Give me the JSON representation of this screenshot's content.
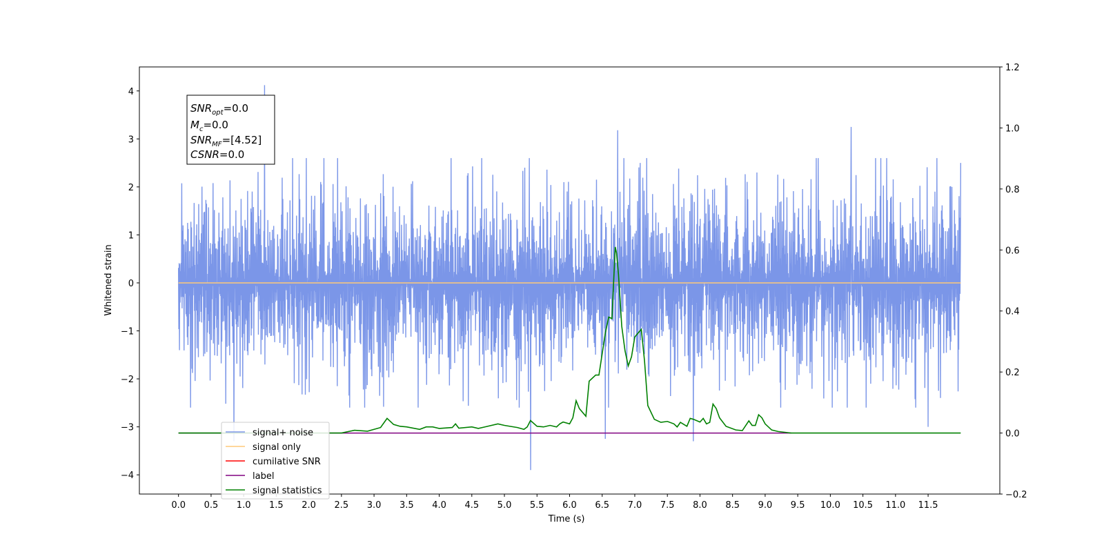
{
  "chart_data": {
    "type": "line",
    "xlabel": "Time (s)",
    "ylabel": "Whitened strain",
    "xlim": [
      -0.6,
      12.6
    ],
    "ylim": [
      -4.4,
      4.5
    ],
    "ylim_right": [
      -0.2,
      1.2
    ],
    "x_ticks": [
      "0.0",
      "0.5",
      "1.0",
      "1.5",
      "2.0",
      "2.5",
      "3.0",
      "3.5",
      "4.0",
      "4.5",
      "5.0",
      "5.5",
      "6.0",
      "6.5",
      "7.0",
      "7.5",
      "8.0",
      "8.5",
      "9.0",
      "9.5",
      "10.0",
      "10.5",
      "11.0",
      "11.5"
    ],
    "y_ticks": [
      "4",
      "3",
      "2",
      "1",
      "0",
      "−1",
      "−2",
      "−3",
      "−4"
    ],
    "y_ticks_right": [
      "1.2",
      "1.0",
      "0.8",
      "0.6",
      "0.4",
      "0.2",
      "0.0",
      "−0.2"
    ],
    "grid": false,
    "legend_position": "lower-left",
    "info_box": {
      "snr_opt": {
        "var": "SNR",
        "sub": "opt",
        "value": "=0.0"
      },
      "mc": {
        "var": "M",
        "sub": "c",
        "value": "=0.0"
      },
      "snr_mf": {
        "var": "SNR",
        "sub": "MF",
        "value": "=[4.52]"
      },
      "csnr": {
        "var": "CSNR",
        "sub": "",
        "value": "=0.0"
      }
    },
    "series": [
      {
        "name": "signal+ noise",
        "color": "#7b96e8",
        "axis": "left",
        "x_range": [
          0,
          12.0
        ],
        "typical_amplitude": 1.4,
        "spikes": [
          [
            0.85,
            -3.3
          ],
          [
            1.32,
            4.12
          ],
          [
            5.4,
            -3.9
          ],
          [
            6.55,
            -3.25
          ],
          [
            6.74,
            3.18
          ],
          [
            7.9,
            -3.3
          ],
          [
            10.32,
            3.25
          ],
          [
            11.5,
            -3.0
          ],
          [
            12.0,
            2.5
          ]
        ]
      },
      {
        "name": "signal only",
        "color": "#ffc878",
        "axis": "left",
        "x": [
          0,
          12.0
        ],
        "y": [
          0,
          0
        ]
      },
      {
        "name": "cumilative SNR",
        "color": "#ff0000",
        "axis": "right",
        "x": [],
        "y": []
      },
      {
        "name": "label",
        "color": "#800080",
        "axis": "right",
        "x": [
          0,
          9.4
        ],
        "y": [
          0,
          0
        ]
      },
      {
        "name": "signal statistics",
        "color": "#008000",
        "axis": "right",
        "x": [
          0.0,
          2.5,
          2.7,
          2.9,
          3.0,
          3.1,
          3.2,
          3.3,
          3.4,
          3.5,
          3.7,
          3.8,
          3.9,
          4.0,
          4.2,
          4.25,
          4.3,
          4.5,
          4.6,
          4.7,
          4.9,
          5.0,
          5.2,
          5.3,
          5.35,
          5.4,
          5.5,
          5.6,
          5.7,
          5.8,
          5.85,
          5.9,
          6.0,
          6.05,
          6.1,
          6.15,
          6.25,
          6.3,
          6.4,
          6.45,
          6.5,
          6.55,
          6.6,
          6.65,
          6.7,
          6.72,
          6.75,
          6.8,
          6.85,
          6.9,
          6.95,
          7.0,
          7.1,
          7.15,
          7.2,
          7.3,
          7.4,
          7.5,
          7.6,
          7.65,
          7.7,
          7.8,
          7.85,
          7.9,
          8.0,
          8.05,
          8.1,
          8.15,
          8.2,
          8.25,
          8.3,
          8.4,
          8.55,
          8.65,
          8.75,
          8.8,
          8.85,
          8.9,
          8.95,
          9.0,
          9.1,
          9.2,
          9.4,
          12.0
        ],
        "y": [
          0.0,
          0.0,
          0.009,
          0.006,
          0.012,
          0.018,
          0.048,
          0.028,
          0.022,
          0.02,
          0.012,
          0.02,
          0.02,
          0.015,
          0.018,
          0.03,
          0.016,
          0.02,
          0.015,
          0.02,
          0.03,
          0.025,
          0.018,
          0.012,
          0.02,
          0.041,
          0.022,
          0.02,
          0.025,
          0.02,
          0.03,
          0.036,
          0.03,
          0.05,
          0.106,
          0.08,
          0.055,
          0.17,
          0.19,
          0.19,
          0.26,
          0.33,
          0.38,
          0.375,
          0.61,
          0.59,
          0.52,
          0.35,
          0.27,
          0.22,
          0.25,
          0.315,
          0.34,
          0.235,
          0.09,
          0.045,
          0.035,
          0.038,
          0.03,
          0.02,
          0.035,
          0.022,
          0.048,
          0.045,
          0.036,
          0.048,
          0.03,
          0.035,
          0.095,
          0.08,
          0.05,
          0.022,
          0.01,
          0.008,
          0.04,
          0.025,
          0.025,
          0.06,
          0.05,
          0.03,
          0.01,
          0.005,
          0.0,
          0.0
        ]
      }
    ]
  }
}
